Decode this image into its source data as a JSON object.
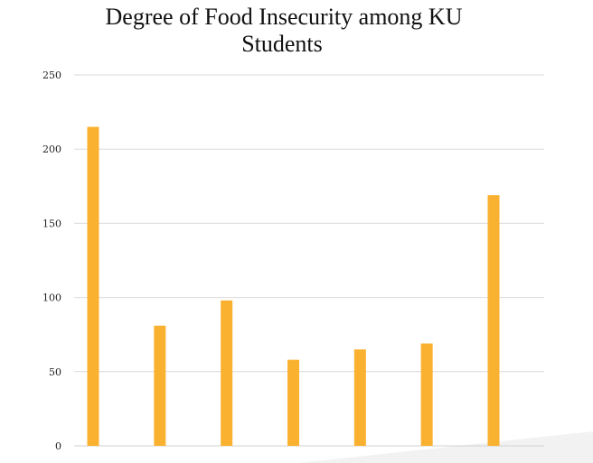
{
  "chart_data": {
    "type": "bar",
    "title_lines": [
      "Degree of Food Insecurity among KU",
      "Students"
    ],
    "categories": [
      "",
      "",
      "",
      "",
      "",
      "",
      ""
    ],
    "values": [
      215,
      81,
      98,
      58,
      65,
      69,
      169
    ],
    "xlabel": "",
    "ylabel": "",
    "ylim": [
      0,
      250
    ],
    "yticks": [
      "0",
      "50",
      "100",
      "150",
      "200",
      "250"
    ],
    "grid": true,
    "legend": "none",
    "bar_color": "#FBB130",
    "grid_color": "#D9D9D9"
  }
}
